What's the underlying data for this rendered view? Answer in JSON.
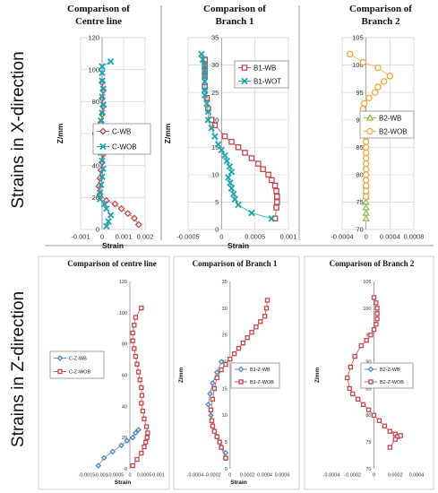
{
  "row_labels": [
    "Strains in X-direction",
    "Strains in Z-direction"
  ],
  "colors": {
    "wb": "#c8454a",
    "wob": "#1aa5ad",
    "b2_wb": "#8fbe45",
    "b2_wob": "#f0a840",
    "z_wb": "#4a86c5",
    "z_wob": "#c8454a",
    "grid": "#d9d9d9",
    "separator": "#9a9a9a"
  },
  "chart_data": [
    {
      "type": "line",
      "title": "Comparison of Centre line",
      "xlabel": "Strain",
      "ylabel": "Z/mm",
      "xlim": [
        -0.001,
        0.002
      ],
      "ylim": [
        0,
        120
      ],
      "xticks": [
        -0.001,
        0,
        0.001,
        0.002
      ],
      "xtick_labels": [
        "-0.001",
        "0",
        "0.001",
        "0.002"
      ],
      "yticks": [
        0,
        20,
        40,
        60,
        80,
        100,
        120
      ],
      "ytick_labels": [
        "0",
        "20",
        "40",
        "60",
        "80",
        "100",
        "120"
      ],
      "grid": true,
      "legend_position": "center-right",
      "series": [
        {
          "name": "C-WB",
          "marker": "diamond",
          "color": "#c8454a",
          "x": [
            0.0017,
            0.0015,
            0.0012,
            0.0009,
            0.0006,
            0.0002,
            -0.0001,
            -0.00015,
            -0.0001,
            -5e-05,
            0.0,
            5e-05,
            -5e-05,
            -0.0001,
            -0.0001,
            -5e-05,
            0.0,
            5e-05,
            0.0,
            5e-05,
            0.0
          ],
          "y": [
            3,
            7,
            10,
            13,
            16,
            18,
            22,
            27,
            32,
            37,
            42,
            47,
            52,
            57,
            62,
            67,
            72,
            77,
            82,
            87,
            92
          ]
        },
        {
          "name": "C-WOB",
          "marker": "x",
          "color": "#1aa5ad",
          "x": [
            0.0002,
            0.0003,
            0.0004,
            0.0002,
            0.0001,
            -0.0001,
            -0.0001,
            -5e-05,
            0.0,
            5e-05,
            0.0,
            -5e-05,
            0.0,
            5e-05,
            0.0,
            -5e-05,
            0.0,
            5e-05,
            0.0,
            5e-05,
            0.0,
            0.0,
            0.0,
            0.0004
          ],
          "y": [
            2,
            5,
            9,
            13,
            16,
            19,
            23,
            28,
            33,
            38,
            43,
            48,
            53,
            58,
            63,
            68,
            73,
            78,
            83,
            88,
            93,
            98,
            102,
            105
          ]
        }
      ]
    },
    {
      "type": "line",
      "title": "Comparison of Branch 1",
      "xlabel": "Strain",
      "ylabel": "Z/mm",
      "xlim": [
        -0.0005,
        0.001
      ],
      "ylim": [
        0,
        35
      ],
      "xticks": [
        -0.0005,
        0,
        0.0005,
        0.001
      ],
      "xtick_labels": [
        "-0.0005",
        "0",
        "0.0005",
        "0.001"
      ],
      "yticks": [
        0,
        5,
        10,
        15,
        20,
        25,
        30,
        35
      ],
      "ytick_labels": [
        "0",
        "5",
        "10",
        "15",
        "20",
        "25",
        "30",
        "35"
      ],
      "grid": true,
      "legend_position": "top-right",
      "series": [
        {
          "name": "B1-WB",
          "marker": "square",
          "color": "#c8454a",
          "x": [
            0.0008,
            0.00082,
            0.00083,
            0.00083,
            0.00082,
            0.0008,
            0.00075,
            0.0007,
            0.00062,
            0.00055,
            0.00045,
            0.00035,
            0.00025,
            0.00015,
            5e-05,
            -0.0001,
            -0.00015,
            -0.0002,
            -0.00022,
            -0.00025,
            -0.00025,
            -0.00025,
            -0.00025,
            -0.00025
          ],
          "y": [
            2,
            4,
            5,
            6,
            7,
            8,
            9,
            10,
            11,
            12,
            13,
            14,
            15,
            16,
            17,
            19,
            20,
            22,
            24,
            26,
            28,
            29,
            30,
            31
          ]
        },
        {
          "name": "B1-WOT",
          "marker": "x",
          "color": "#1aa5ad",
          "x": [
            0.00075,
            0.00045,
            0.00025,
            0.0002,
            0.00018,
            0.00015,
            0.00013,
            0.0001,
            0.00015,
            0.00012,
            8e-05,
            5e-05,
            0.0,
            -5e-05,
            -0.0001,
            -0.00015,
            -0.0002,
            -0.0002,
            -0.00022,
            -0.00025,
            -0.00025,
            -0.00025,
            -0.00025,
            -0.00025,
            -0.00025,
            -0.00028,
            -0.0003
          ],
          "y": [
            2,
            3,
            4.5,
            5.5,
            6.5,
            7.5,
            8.5,
            9.5,
            10.5,
            11.5,
            12.5,
            13.5,
            14.5,
            15.5,
            17,
            18.5,
            20,
            21.5,
            23,
            24.5,
            25.5,
            27,
            28,
            29,
            30,
            31,
            32
          ]
        }
      ]
    },
    {
      "type": "line",
      "title": "Comparison of Branch 2",
      "xlabel": "",
      "ylabel": "",
      "xlim": [
        -0.0004,
        0.0008
      ],
      "ylim": [
        70,
        105
      ],
      "xticks": [
        -0.0004,
        0,
        0.0004,
        0.0008
      ],
      "xtick_labels": [
        "-0.0004",
        "0",
        "0.0004",
        "0.0008"
      ],
      "yticks": [
        70,
        75,
        80,
        85,
        90,
        95,
        100,
        105
      ],
      "ytick_labels": [
        "70",
        "75",
        "80",
        "85",
        "90",
        "95",
        "100",
        "105"
      ],
      "grid": true,
      "legend_position": "center-right",
      "series": [
        {
          "name": "B2-WB",
          "marker": "triangle",
          "color": "#8fbe45",
          "x": [
            0.0,
            0.0,
            0.0,
            0.0,
            0.0,
            0.0,
            0.0
          ],
          "y": [
            72,
            73,
            74,
            75,
            76,
            77,
            78
          ]
        },
        {
          "name": "B2-WOB",
          "marker": "circle",
          "color": "#f0a840",
          "x": [
            -0.00027,
            -5e-05,
            0.0002,
            0.0004,
            0.0003,
            0.0002,
            0.00015,
            5e-05,
            -3e-05,
            -5e-05,
            -5e-05,
            -3e-05,
            0.0,
            0.0,
            0.0,
            0.0,
            0.0,
            0.0,
            0.0,
            0.0,
            0.0,
            0.0,
            0.0,
            0.0,
            0.0,
            0.0
          ],
          "y": [
            102,
            100.5,
            99.5,
            98,
            97,
            96,
            95,
            94,
            93,
            92,
            91,
            90,
            89,
            88,
            87,
            86,
            85,
            84,
            83,
            82,
            81,
            80,
            79,
            78,
            77,
            76
          ]
        }
      ]
    },
    {
      "type": "line",
      "title": "Comparison of centre line",
      "xlabel": "Strain",
      "ylabel": "",
      "xlim": [
        -0.0015,
        0.001
      ],
      "ylim": [
        0,
        120
      ],
      "xticks": [
        -0.0015,
        -0.001,
        -0.0005,
        0,
        0.0005,
        0.001
      ],
      "xtick_labels": [
        "-0.0015",
        "-0.001",
        "-0.0005",
        "0",
        "0.0005",
        "0.001"
      ],
      "yticks": [
        0,
        20,
        40,
        60,
        80,
        100,
        120
      ],
      "ytick_labels": [
        "0",
        "20",
        "40",
        "60",
        "80",
        "100",
        "120"
      ],
      "grid": false,
      "legend_position": "center-left",
      "series": [
        {
          "name": "C-Z-WB",
          "marker": "diamond",
          "color": "#4a86c5",
          "x": [
            -0.0011,
            -0.0009,
            -0.0006,
            -0.0003,
            -0.0001,
            0.0001,
            0.0002,
            0.0003
          ],
          "y": [
            2,
            7,
            11,
            15,
            18,
            20,
            23,
            25
          ]
        },
        {
          "name": "C-Z-WOB",
          "marker": "square",
          "color": "#c8454a",
          "x": [
            0.0001,
            0.00025,
            0.0004,
            0.0005,
            0.00055,
            0.0006,
            0.00062,
            0.00058,
            0.0005,
            0.00045,
            0.0004,
            0.00042,
            0.0004,
            0.00035,
            0.0003,
            0.00025,
            0.0002,
            0.00015,
            0.0001,
            0.0001,
            0.00015,
            0.0002,
            0.0004
          ],
          "y": [
            2,
            6,
            10,
            14,
            17,
            20,
            23,
            27,
            32,
            37,
            42,
            47,
            52,
            57,
            62,
            67,
            72,
            77,
            82,
            87,
            92,
            97,
            103
          ]
        }
      ]
    },
    {
      "type": "line",
      "title": "Comparison of Branch 1",
      "xlabel": "Strain",
      "ylabel": "Z/mm",
      "xlim": [
        -0.0004,
        0.0006
      ],
      "ylim": [
        0,
        35
      ],
      "xticks": [
        -0.0004,
        -0.0002,
        0,
        0.0002,
        0.0004,
        0.0006
      ],
      "xtick_labels": [
        "-0.0004",
        "-0.0002",
        "0",
        "0.0002",
        "0.0004",
        "0.0006"
      ],
      "yticks": [
        0,
        5,
        10,
        15,
        20,
        25,
        30,
        35
      ],
      "ytick_labels": [
        "0",
        "5",
        "10",
        "15",
        "20",
        "25",
        "30",
        "35"
      ],
      "grid": false,
      "legend_position": "center-right",
      "series": [
        {
          "name": "B1-Z-WB",
          "marker": "diamond",
          "color": "#4a86c5",
          "x": [
            -5e-05,
            -5e-05,
            -0.0001,
            -0.00012,
            -0.00015,
            -0.00018,
            -0.0002,
            -0.00022,
            -0.00025,
            -0.00023,
            -0.0002,
            -0.00015,
            -0.0001
          ],
          "y": [
            2,
            3,
            4,
            5,
            6,
            7,
            8,
            10,
            12,
            14,
            16,
            18,
            20
          ]
        },
        {
          "name": "B1-Z-WOB",
          "marker": "square",
          "color": "#c8454a",
          "x": [
            -5e-05,
            -0.0001,
            -0.00012,
            -0.00015,
            -0.00018,
            -0.0002,
            -0.00021,
            -0.00022,
            -0.0002,
            -0.00018,
            -0.00015,
            -0.0001,
            -5e-05,
            0.0,
            5e-05,
            0.0001,
            0.00015,
            0.0002,
            0.00025,
            0.0003,
            0.00035,
            0.0004,
            0.00042,
            0.00043
          ],
          "y": [
            2,
            4,
            5,
            6,
            7,
            8,
            9,
            11,
            13,
            15,
            17,
            18.5,
            19.5,
            20.5,
            21.5,
            22.5,
            23.5,
            24.5,
            25.5,
            26.5,
            27.5,
            28.5,
            30,
            31.5
          ]
        }
      ]
    },
    {
      "type": "line",
      "title": "Comparison of Branch 2",
      "xlabel": "",
      "ylabel": "Z/mm",
      "xlim": [
        -0.0004,
        0.0004
      ],
      "ylim": [
        70,
        105
      ],
      "xticks": [
        -0.0004,
        -0.0002,
        0,
        0.0002,
        0.0004
      ],
      "xtick_labels": [
        "-0.0004",
        "-0.0002",
        "0",
        "0.0002",
        "0.0004"
      ],
      "yticks": [
        70,
        75,
        80,
        85,
        90,
        95,
        100,
        105
      ],
      "ytick_labels": [
        "70",
        "75",
        "80",
        "85",
        "90",
        "95",
        "100",
        "105"
      ],
      "grid": false,
      "legend_position": "center-right",
      "series": [
        {
          "name": "B2-Z-WB",
          "marker": "diamond",
          "color": "#4a86c5",
          "x": [],
          "y": []
        },
        {
          "name": "B2-Z-WOB",
          "marker": "square",
          "color": "#c8454a",
          "x": [
            0.0,
            2e-05,
            3e-05,
            3e-05,
            3e-05,
            2e-05,
            0.0,
            -3e-05,
            -7e-05,
            -0.00012,
            -0.00018,
            -0.00022,
            -0.00025,
            -0.00023,
            -0.0002,
            -0.00015,
            -0.0001,
            -5e-05,
            0.0,
            5e-05,
            0.0001,
            0.00015,
            0.0002,
            0.00022,
            0.00025,
            0.0002,
            0.00015
          ],
          "y": [
            102,
            101,
            100,
            99,
            98,
            97,
            96,
            95,
            94,
            93,
            91,
            89,
            87,
            85,
            84,
            83,
            82,
            81,
            80,
            79,
            78,
            77,
            76.5,
            76,
            76.2,
            75.5,
            74
          ]
        }
      ]
    }
  ]
}
